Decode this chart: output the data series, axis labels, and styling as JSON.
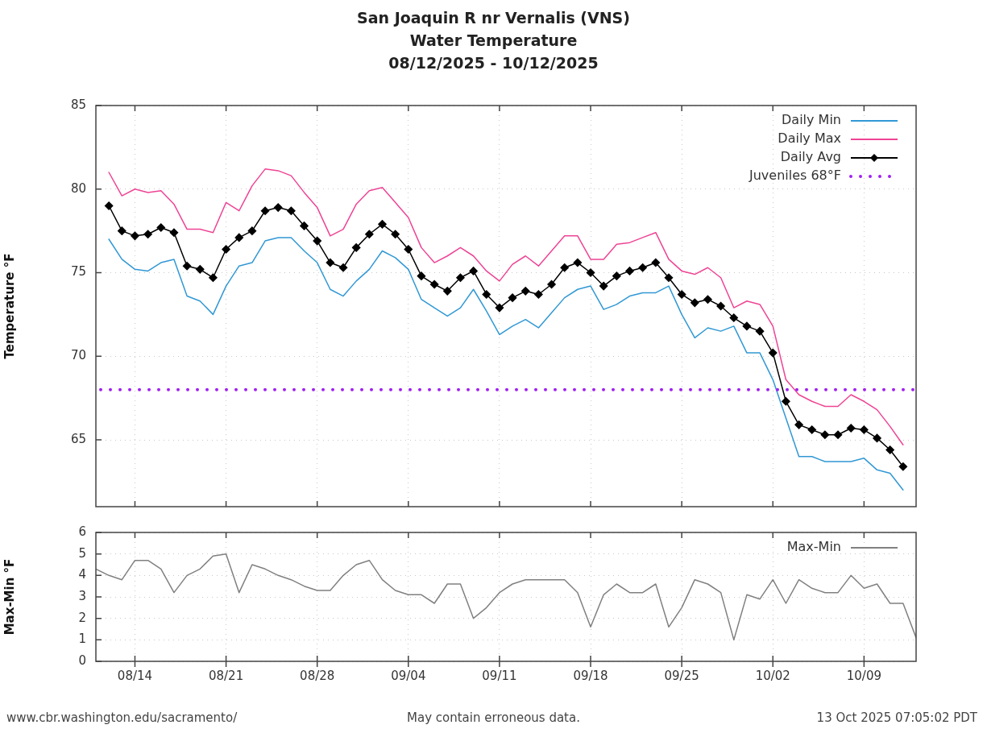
{
  "chart_data": [
    {
      "type": "line",
      "title": "San Joaquin R nr Vernalis (VNS)",
      "subtitle": "Water Temperature\n08/12/2025 - 10/12/2025",
      "ylabel": "Temperature °F",
      "x": [
        "2025-08-12",
        "2025-08-13",
        "2025-08-14",
        "2025-08-15",
        "2025-08-16",
        "2025-08-17",
        "2025-08-18",
        "2025-08-19",
        "2025-08-20",
        "2025-08-21",
        "2025-08-22",
        "2025-08-23",
        "2025-08-24",
        "2025-08-25",
        "2025-08-26",
        "2025-08-27",
        "2025-08-28",
        "2025-08-29",
        "2025-08-30",
        "2025-08-31",
        "2025-09-01",
        "2025-09-02",
        "2025-09-03",
        "2025-09-04",
        "2025-09-05",
        "2025-09-06",
        "2025-09-07",
        "2025-09-08",
        "2025-09-09",
        "2025-09-10",
        "2025-09-11",
        "2025-09-12",
        "2025-09-13",
        "2025-09-14",
        "2025-09-15",
        "2025-09-16",
        "2025-09-17",
        "2025-09-18",
        "2025-09-19",
        "2025-09-20",
        "2025-09-21",
        "2025-09-22",
        "2025-09-23",
        "2025-09-24",
        "2025-09-25",
        "2025-09-26",
        "2025-09-27",
        "2025-09-28",
        "2025-09-29",
        "2025-09-30",
        "2025-10-01",
        "2025-10-02",
        "2025-10-03",
        "2025-10-04",
        "2025-10-05",
        "2025-10-06",
        "2025-10-07",
        "2025-10-08",
        "2025-10-09",
        "2025-10-10",
        "2025-10-11",
        "2025-10-12"
      ],
      "series": [
        {
          "name": "Daily Min",
          "color": "#3198d4",
          "values": [
            77.0,
            75.8,
            75.2,
            75.1,
            75.6,
            75.8,
            73.6,
            73.3,
            72.5,
            74.2,
            75.4,
            75.6,
            76.9,
            77.1,
            77.1,
            76.3,
            75.6,
            74.0,
            73.6,
            74.5,
            75.2,
            76.3,
            75.9,
            75.2,
            73.4,
            72.9,
            72.4,
            72.9,
            74.0,
            72.7,
            71.3,
            71.8,
            72.2,
            71.7,
            72.6,
            73.5,
            74.0,
            74.2,
            72.8,
            73.1,
            73.6,
            73.8,
            73.8,
            74.2,
            72.5,
            71.1,
            71.7,
            71.5,
            71.8,
            70.2,
            70.2,
            68.6,
            66.3,
            64.0,
            64.0,
            63.7,
            63.7,
            63.7,
            63.9,
            63.2,
            63.0,
            62.0
          ]
        },
        {
          "name": "Daily Max",
          "color": "#ee4495",
          "values": [
            81.0,
            79.6,
            80.0,
            79.8,
            79.9,
            79.1,
            77.6,
            77.6,
            77.4,
            79.2,
            78.7,
            80.2,
            81.2,
            81.1,
            80.8,
            79.8,
            78.9,
            77.2,
            77.6,
            79.1,
            79.9,
            80.1,
            79.2,
            78.3,
            76.5,
            75.6,
            76.0,
            76.5,
            76.0,
            75.1,
            74.5,
            75.5,
            76.0,
            75.4,
            76.3,
            77.2,
            77.2,
            75.8,
            75.8,
            76.7,
            76.8,
            77.1,
            77.4,
            75.8,
            75.1,
            74.9,
            75.3,
            74.7,
            72.9,
            73.3,
            73.1,
            71.8,
            68.6,
            67.7,
            67.3,
            67.0,
            67.0,
            67.7,
            67.3,
            66.8,
            65.8,
            64.7
          ]
        },
        {
          "name": "Daily Avg",
          "color": "#000000",
          "marker": "diamond",
          "values": [
            79.0,
            77.5,
            77.2,
            77.3,
            77.7,
            77.4,
            75.4,
            75.2,
            74.7,
            76.4,
            77.1,
            77.5,
            78.7,
            78.9,
            78.7,
            77.8,
            76.9,
            75.6,
            75.3,
            76.5,
            77.3,
            77.9,
            77.3,
            76.4,
            74.8,
            74.3,
            73.9,
            74.7,
            75.1,
            73.7,
            72.9,
            73.5,
            73.9,
            73.7,
            74.3,
            75.3,
            75.6,
            75.0,
            74.2,
            74.8,
            75.1,
            75.3,
            75.6,
            74.7,
            73.7,
            73.2,
            73.4,
            73.0,
            72.3,
            71.8,
            71.5,
            70.2,
            67.3,
            65.9,
            65.6,
            65.3,
            65.3,
            65.7,
            65.6,
            65.1,
            64.4,
            63.4
          ]
        }
      ],
      "ref_lines": [
        {
          "axis": "y",
          "value": 68,
          "label": "Juveniles 68°F",
          "color": "#a020f0",
          "line_style": "dotted"
        }
      ],
      "xlim": [
        "2025-08-11",
        "2025-10-13"
      ],
      "xticks": [
        {
          "value": "2025-08-14",
          "label": null
        },
        {
          "value": "2025-08-21",
          "label": null
        },
        {
          "value": "2025-08-28",
          "label": null
        },
        {
          "value": "2025-09-04",
          "label": null
        },
        {
          "value": "2025-09-11",
          "label": null
        },
        {
          "value": "2025-09-18",
          "label": null
        },
        {
          "value": "2025-09-25",
          "label": null
        },
        {
          "value": "2025-10-02",
          "label": null
        },
        {
          "value": "2025-10-09",
          "label": null
        }
      ],
      "ylim": [
        61,
        85
      ],
      "yticks": [
        65,
        70,
        75,
        80,
        85
      ],
      "tick_labels": "y",
      "grid": true,
      "legend": "top right",
      "marker": "none",
      "line_style": "solid"
    },
    {
      "type": "line",
      "ylabel": "Max-Min °F",
      "x": [
        "2025-08-11",
        "2025-08-12",
        "2025-08-13",
        "2025-08-14",
        "2025-08-15",
        "2025-08-16",
        "2025-08-17",
        "2025-08-18",
        "2025-08-19",
        "2025-08-20",
        "2025-08-21",
        "2025-08-22",
        "2025-08-23",
        "2025-08-24",
        "2025-08-25",
        "2025-08-26",
        "2025-08-27",
        "2025-08-28",
        "2025-08-29",
        "2025-08-30",
        "2025-08-31",
        "2025-09-01",
        "2025-09-02",
        "2025-09-03",
        "2025-09-04",
        "2025-09-05",
        "2025-09-06",
        "2025-09-07",
        "2025-09-08",
        "2025-09-09",
        "2025-09-10",
        "2025-09-11",
        "2025-09-12",
        "2025-09-13",
        "2025-09-14",
        "2025-09-15",
        "2025-09-16",
        "2025-09-17",
        "2025-09-18",
        "2025-09-19",
        "2025-09-20",
        "2025-09-21",
        "2025-09-22",
        "2025-09-23",
        "2025-09-24",
        "2025-09-25",
        "2025-09-26",
        "2025-09-27",
        "2025-09-28",
        "2025-09-29",
        "2025-09-30",
        "2025-10-01",
        "2025-10-02",
        "2025-10-03",
        "2025-10-04",
        "2025-10-05",
        "2025-10-06",
        "2025-10-07",
        "2025-10-08",
        "2025-10-09",
        "2025-10-10",
        "2025-10-11",
        "2025-10-12",
        "2025-10-13"
      ],
      "series": [
        {
          "name": "Max-Min",
          "color": "#808080",
          "values": [
            4.3,
            4.0,
            3.8,
            4.7,
            4.7,
            4.3,
            3.2,
            4.0,
            4.3,
            4.9,
            5.0,
            3.2,
            4.5,
            4.3,
            4.0,
            3.8,
            3.5,
            3.3,
            3.3,
            4.0,
            4.5,
            4.7,
            3.8,
            3.3,
            3.1,
            3.1,
            2.7,
            3.6,
            3.6,
            2.0,
            2.5,
            3.2,
            3.6,
            3.8,
            3.8,
            3.8,
            3.8,
            3.2,
            1.6,
            3.1,
            3.6,
            3.2,
            3.2,
            3.6,
            1.6,
            2.5,
            3.8,
            3.6,
            3.2,
            1.0,
            3.1,
            2.9,
            3.8,
            2.7,
            3.8,
            3.4,
            3.2,
            3.2,
            4.0,
            3.4,
            3.6,
            2.7,
            2.7,
            1.1
          ]
        }
      ],
      "xlim": [
        "2025-08-11",
        "2025-10-13"
      ],
      "xticks": [
        {
          "value": "2025-08-14",
          "label": "08/14"
        },
        {
          "value": "2025-08-21",
          "label": "08/21"
        },
        {
          "value": "2025-08-28",
          "label": "08/28"
        },
        {
          "value": "2025-09-04",
          "label": "09/04"
        },
        {
          "value": "2025-09-11",
          "label": "09/11"
        },
        {
          "value": "2025-09-18",
          "label": "09/18"
        },
        {
          "value": "2025-09-25",
          "label": "09/25"
        },
        {
          "value": "2025-10-02",
          "label": "10/02"
        },
        {
          "value": "2025-10-09",
          "label": "10/09"
        }
      ],
      "ylim": [
        0,
        6
      ],
      "yticks": [
        0,
        1,
        2,
        3,
        4,
        5,
        6
      ],
      "grid": true,
      "legend": "top right",
      "marker": "none",
      "line_style": "solid",
      "annotations": [
        "www.cbr.washington.edu/sacramento/",
        "May contain erroneous data.",
        "13 Oct 2025 07:05:02 PDT"
      ]
    }
  ]
}
